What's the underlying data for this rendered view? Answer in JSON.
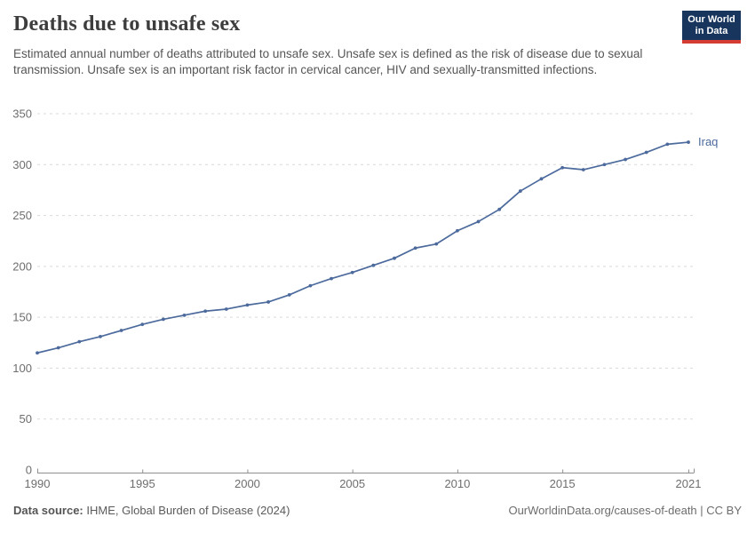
{
  "header": {
    "title": "Deaths due to unsafe sex",
    "subtitle": "Estimated annual number of deaths attributed to unsafe sex. Unsafe sex is defined as the risk of disease due to sexual transmission. Unsafe sex is an important risk factor in cervical cancer, HIV and sexually-transmitted infections.",
    "logo": {
      "line1": "Our World",
      "line2": "in Data",
      "bg_color": "#18365d",
      "bar_color": "#d73c32"
    }
  },
  "chart_data": {
    "type": "line",
    "title": "Deaths due to unsafe sex",
    "end_label": "Iraq",
    "series": [
      {
        "name": "Iraq",
        "color": "#4c6a9c",
        "x": [
          1990,
          1991,
          1992,
          1993,
          1994,
          1995,
          1996,
          1997,
          1998,
          1999,
          2000,
          2001,
          2002,
          2003,
          2004,
          2005,
          2006,
          2007,
          2008,
          2009,
          2010,
          2011,
          2012,
          2013,
          2014,
          2015,
          2016,
          2017,
          2018,
          2019,
          2020,
          2021
        ],
        "values": [
          115,
          120,
          126,
          131,
          137,
          143,
          148,
          152,
          156,
          158,
          162,
          165,
          172,
          181,
          188,
          194,
          201,
          208,
          218,
          222,
          235,
          244,
          256,
          274,
          286,
          297,
          295,
          300,
          305,
          312,
          320,
          322
        ]
      }
    ],
    "xticks": [
      1990,
      1995,
      2000,
      2005,
      2010,
      2015,
      2021
    ],
    "yticks": [
      0,
      50,
      100,
      150,
      200,
      250,
      300,
      350
    ],
    "xlim": [
      1990,
      2021
    ],
    "ylim": [
      0,
      350
    ],
    "grid": "horizontal-dashed",
    "legend_position": "end-of-line",
    "gridline_color": "#d9d9d9",
    "axis_color": "#8f8f8f",
    "tick_label_color": "#6e6e6e"
  },
  "footer": {
    "source_label": "Data source:",
    "source_text": " IHME, Global Burden of Disease (2024)",
    "link_text": "OurWorldinData.org/causes-of-death | CC BY"
  }
}
